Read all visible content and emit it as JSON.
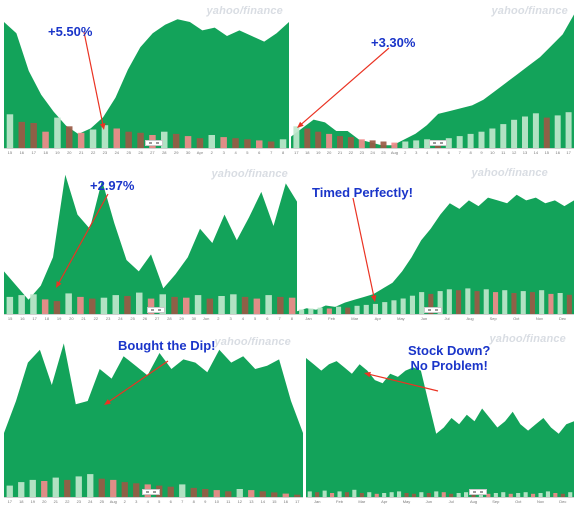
{
  "watermark": "yahoo/finance",
  "colors": {
    "area": "#13a35a",
    "vol_up": "#bfe7cc",
    "vol_down_red": "#f28b8b",
    "vol_down_brown": "#9a5a45",
    "arrow": "#ea3323",
    "annotation": "#1a35c9"
  },
  "chart_data": [
    {
      "type": "area",
      "title": "",
      "xlabel": "",
      "ylabel": "",
      "annotation": "+5.50%",
      "x_ticks": [
        "15",
        "16",
        "17",
        "18",
        "19",
        "20",
        "21",
        "22",
        "23",
        "24",
        "25",
        "26",
        "27",
        "28",
        "29",
        "30",
        "Apr",
        "2",
        "3",
        "4",
        "5",
        "6",
        "7",
        "8"
      ],
      "values": [
        90,
        82,
        55,
        38,
        26,
        16,
        10,
        14,
        22,
        36,
        56,
        72,
        82,
        88,
        92,
        90,
        84,
        86,
        80,
        84,
        80,
        76,
        82,
        90
      ],
      "volume": [
        62,
        48,
        46,
        30,
        56,
        40,
        28,
        34,
        42,
        36,
        30,
        28,
        24,
        30,
        26,
        22,
        18,
        24,
        20,
        18,
        16,
        14,
        12,
        16
      ]
    },
    {
      "type": "area",
      "title": "",
      "xlabel": "",
      "ylabel": "",
      "annotation": "+3.30%",
      "x_ticks": [
        "17",
        "18",
        "19",
        "20",
        "21",
        "22",
        "23",
        "24",
        "25",
        "Aug",
        "2",
        "3",
        "4",
        "5",
        "6",
        "7",
        "8",
        "9",
        "10",
        "11",
        "12",
        "13",
        "14",
        "15",
        "16",
        "17"
      ],
      "values": [
        8,
        14,
        20,
        18,
        12,
        12,
        6,
        4,
        2,
        2,
        6,
        10,
        16,
        24,
        26,
        28,
        30,
        34,
        40,
        46,
        52,
        58,
        64,
        72,
        80,
        94
      ],
      "volume": [
        40,
        36,
        30,
        26,
        22,
        20,
        16,
        14,
        12,
        10,
        12,
        14,
        16,
        12,
        18,
        22,
        26,
        30,
        36,
        44,
        52,
        58,
        64,
        56,
        60,
        66
      ]
    },
    {
      "type": "area",
      "title": "",
      "xlabel": "",
      "ylabel": "",
      "annotation": "+2.97%",
      "x_ticks": [
        "15",
        "16",
        "17",
        "18",
        "19",
        "20",
        "21",
        "22",
        "23",
        "24",
        "25",
        "26",
        "27",
        "28",
        "29",
        "30",
        "Jun",
        "2",
        "3",
        "4",
        "5",
        "6",
        "7",
        "8"
      ],
      "values": [
        30,
        20,
        10,
        20,
        40,
        98,
        70,
        60,
        94,
        64,
        38,
        30,
        42,
        18,
        28,
        40,
        60,
        50,
        70,
        52,
        68,
        86,
        62,
        92,
        78
      ],
      "volume": [
        40,
        44,
        46,
        34,
        30,
        48,
        40,
        36,
        38,
        44,
        42,
        50,
        36,
        46,
        40,
        38,
        44,
        36,
        42,
        46,
        40,
        36,
        44,
        40,
        38
      ]
    },
    {
      "type": "area",
      "title": "",
      "xlabel": "",
      "ylabel": "",
      "annotation": "Timed Perfectly!",
      "x_ticks": [
        "Jan",
        "Feb",
        "Mar",
        "Apr",
        "May",
        "Jun",
        "Jul",
        "Aug",
        "Sep",
        "Oct",
        "Nov",
        "Dec"
      ],
      "values": [
        2,
        4,
        3,
        6,
        5,
        8,
        10,
        12,
        14,
        18,
        22,
        30,
        40,
        52,
        60,
        70,
        78,
        74,
        80,
        76,
        82,
        80,
        78,
        84,
        80,
        82,
        78,
        80,
        76,
        80
      ],
      "volume": [
        10,
        12,
        14,
        12,
        16,
        14,
        18,
        20,
        22,
        26,
        30,
        34,
        40,
        48,
        44,
        50,
        54,
        52,
        56,
        50,
        54,
        48,
        52,
        46,
        50,
        48,
        52,
        44,
        46,
        42
      ]
    },
    {
      "type": "area",
      "title": "",
      "xlabel": "",
      "ylabel": "",
      "annotation": "Bought the Dip!",
      "x_ticks": [
        "17",
        "18",
        "19",
        "20",
        "21",
        "22",
        "23",
        "24",
        "25",
        "Aug",
        "2",
        "3",
        "4",
        "5",
        "6",
        "7",
        "8",
        "9",
        "10",
        "11",
        "12",
        "13",
        "14",
        "15",
        "16",
        "17"
      ],
      "values": [
        40,
        60,
        84,
        92,
        70,
        96,
        58,
        60,
        80,
        74,
        88,
        82,
        76,
        90,
        80,
        86,
        84,
        78,
        92,
        84,
        88,
        80,
        82,
        86,
        60,
        40
      ],
      "volume": [
        20,
        26,
        30,
        28,
        34,
        30,
        36,
        40,
        32,
        30,
        26,
        24,
        22,
        20,
        18,
        22,
        16,
        14,
        12,
        10,
        14,
        12,
        10,
        8,
        6,
        4
      ]
    },
    {
      "type": "area",
      "title": "",
      "xlabel": "",
      "ylabel": "",
      "annotation": "Stock Down?\nNo Problem!",
      "x_ticks": [
        "Jan",
        "Feb",
        "Mar",
        "Apr",
        "May",
        "Jun",
        "Jul",
        "Aug",
        "Sep",
        "Oct",
        "Nov",
        "Dec"
      ],
      "values": [
        88,
        84,
        80,
        84,
        86,
        82,
        78,
        84,
        80,
        74,
        72,
        78,
        76,
        80,
        82,
        80,
        60,
        40,
        44,
        50,
        46,
        52,
        48,
        56,
        50,
        44,
        48,
        54,
        46,
        42,
        46,
        50,
        44,
        40,
        46,
        48
      ],
      "volume": [
        14,
        12,
        16,
        10,
        14,
        12,
        18,
        10,
        12,
        8,
        10,
        12,
        14,
        10,
        8,
        12,
        10,
        14,
        12,
        8,
        10,
        12,
        10,
        14,
        8,
        10,
        12,
        8,
        10,
        12,
        8,
        10,
        14,
        10,
        8,
        12
      ]
    }
  ]
}
